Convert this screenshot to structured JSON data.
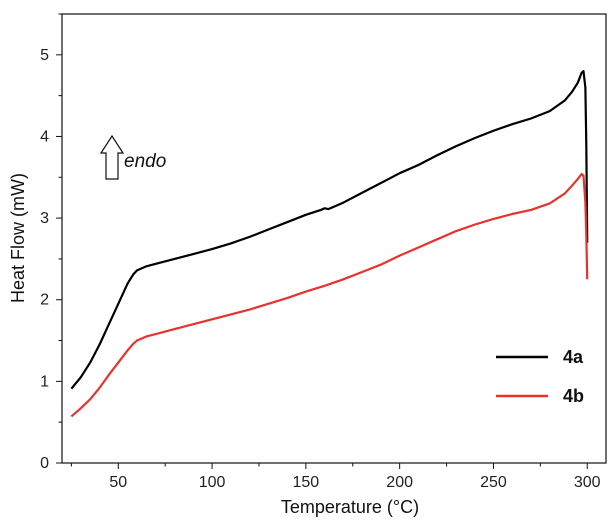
{
  "chart_data": {
    "type": "line",
    "title": "",
    "xlabel": "Temperature (°C)",
    "ylabel": "Heat Flow (mW)",
    "xlim": [
      20,
      310
    ],
    "ylim": [
      0,
      5.5
    ],
    "xticks": [
      50,
      100,
      150,
      200,
      250,
      300
    ],
    "yticks": [
      0,
      1,
      2,
      3,
      4,
      5
    ],
    "grid": false,
    "legend_position": "bottom-right",
    "annotation": {
      "text": "endo",
      "arrow": "up"
    },
    "series": [
      {
        "name": "4a",
        "color": "#000000",
        "points": [
          [
            25,
            0.91
          ],
          [
            30,
            1.05
          ],
          [
            35,
            1.23
          ],
          [
            40,
            1.45
          ],
          [
            45,
            1.7
          ],
          [
            50,
            1.95
          ],
          [
            55,
            2.2
          ],
          [
            58,
            2.31
          ],
          [
            60,
            2.36
          ],
          [
            65,
            2.41
          ],
          [
            70,
            2.44
          ],
          [
            80,
            2.5
          ],
          [
            90,
            2.56
          ],
          [
            100,
            2.62
          ],
          [
            110,
            2.69
          ],
          [
            120,
            2.77
          ],
          [
            130,
            2.86
          ],
          [
            140,
            2.95
          ],
          [
            150,
            3.04
          ],
          [
            158,
            3.1
          ],
          [
            160,
            3.12
          ],
          [
            162,
            3.11
          ],
          [
            170,
            3.19
          ],
          [
            180,
            3.31
          ],
          [
            190,
            3.43
          ],
          [
            200,
            3.55
          ],
          [
            210,
            3.65
          ],
          [
            220,
            3.77
          ],
          [
            230,
            3.88
          ],
          [
            240,
            3.98
          ],
          [
            250,
            4.07
          ],
          [
            260,
            4.15
          ],
          [
            270,
            4.22
          ],
          [
            280,
            4.31
          ],
          [
            288,
            4.44
          ],
          [
            292,
            4.55
          ],
          [
            295,
            4.66
          ],
          [
            297,
            4.78
          ],
          [
            298,
            4.8
          ],
          [
            299,
            4.6
          ],
          [
            299.5,
            3.9
          ],
          [
            300,
            2.7
          ]
        ]
      },
      {
        "name": "4b",
        "color": "#e8322d",
        "points": [
          [
            25,
            0.57
          ],
          [
            30,
            0.67
          ],
          [
            35,
            0.78
          ],
          [
            40,
            0.92
          ],
          [
            45,
            1.08
          ],
          [
            50,
            1.23
          ],
          [
            55,
            1.38
          ],
          [
            58,
            1.46
          ],
          [
            60,
            1.5
          ],
          [
            65,
            1.55
          ],
          [
            70,
            1.58
          ],
          [
            80,
            1.64
          ],
          [
            90,
            1.7
          ],
          [
            100,
            1.76
          ],
          [
            110,
            1.82
          ],
          [
            120,
            1.88
          ],
          [
            130,
            1.95
          ],
          [
            140,
            2.02
          ],
          [
            150,
            2.1
          ],
          [
            160,
            2.17
          ],
          [
            170,
            2.25
          ],
          [
            180,
            2.34
          ],
          [
            190,
            2.43
          ],
          [
            200,
            2.54
          ],
          [
            210,
            2.64
          ],
          [
            220,
            2.74
          ],
          [
            230,
            2.84
          ],
          [
            240,
            2.92
          ],
          [
            250,
            2.99
          ],
          [
            260,
            3.05
          ],
          [
            270,
            3.1
          ],
          [
            280,
            3.18
          ],
          [
            288,
            3.3
          ],
          [
            292,
            3.4
          ],
          [
            295,
            3.48
          ],
          [
            297,
            3.54
          ],
          [
            298,
            3.52
          ],
          [
            299,
            3.2
          ],
          [
            299.5,
            2.8
          ],
          [
            300,
            2.25
          ]
        ]
      }
    ]
  }
}
